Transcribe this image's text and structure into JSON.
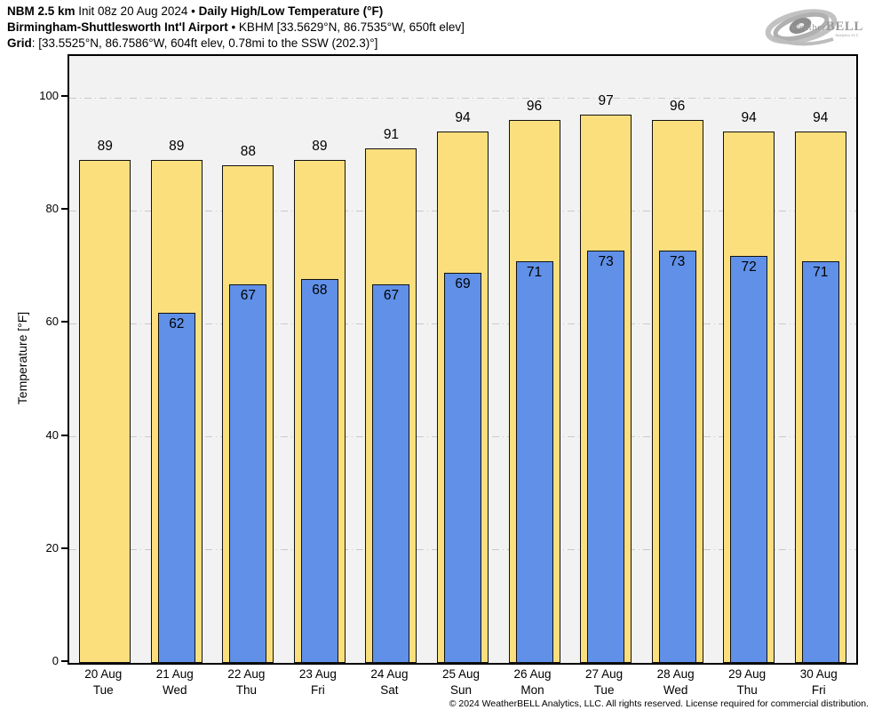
{
  "header": {
    "lines": [
      {
        "segments": [
          {
            "text": "NBM 2.5 km",
            "bold": true
          },
          {
            "text": " Init 08z 20 Aug 2024 ",
            "bold": false
          },
          {
            "text": "• ",
            "bold": false
          },
          {
            "text": "Daily High/Low Temperature (°F)",
            "bold": true
          }
        ]
      },
      {
        "segments": [
          {
            "text": "Birmingham-Shuttlesworth Int'l Airport",
            "bold": true
          },
          {
            "text": " • KBHM [33.5629°N, 86.7535°W, 650ft elev]",
            "bold": false
          }
        ]
      },
      {
        "segments": [
          {
            "text": "Grid",
            "bold": true
          },
          {
            "text": ": [33.5525°N, 86.7586°W, 604ft elev, 0.78mi to the SSW (202.3)°]",
            "bold": false
          }
        ]
      }
    ]
  },
  "logo": {
    "weather": "Weather",
    "bell": "BELL",
    "sub": "Analytics LLC"
  },
  "chart_data": {
    "type": "bar",
    "title": "NBM 2.5 km Daily High/Low Temperature (°F) — Birmingham-Shuttlesworth Int'l Airport (KBHM)",
    "ylabel": "Temperature [°F]",
    "ylim": [
      0,
      107.4
    ],
    "yticks": [
      0,
      20,
      40,
      60,
      80,
      100
    ],
    "grid": "horizontal dash-dot",
    "plot_bg": "#f2f2f2",
    "categories": [
      "20 Aug",
      "21 Aug",
      "22 Aug",
      "23 Aug",
      "24 Aug",
      "25 Aug",
      "26 Aug",
      "27 Aug",
      "28 Aug",
      "29 Aug",
      "30 Aug"
    ],
    "weekdays": [
      "Tue",
      "Wed",
      "Thu",
      "Fri",
      "Sat",
      "Sun",
      "Mon",
      "Tue",
      "Wed",
      "Thu",
      "Fri"
    ],
    "series": [
      {
        "name": "High",
        "color": "#fbdf7d",
        "values": [
          89,
          89,
          88,
          89,
          91,
          94,
          96,
          97,
          96,
          94,
          94
        ]
      },
      {
        "name": "Low",
        "color": "#6090e8",
        "values": [
          null,
          62,
          67,
          68,
          67,
          69,
          71,
          73,
          73,
          72,
          71
        ]
      }
    ]
  },
  "footer": {
    "copyright": "© 2024 WeatherBELL Analytics, LLC. All rights reserved. License required for commercial distribution."
  }
}
